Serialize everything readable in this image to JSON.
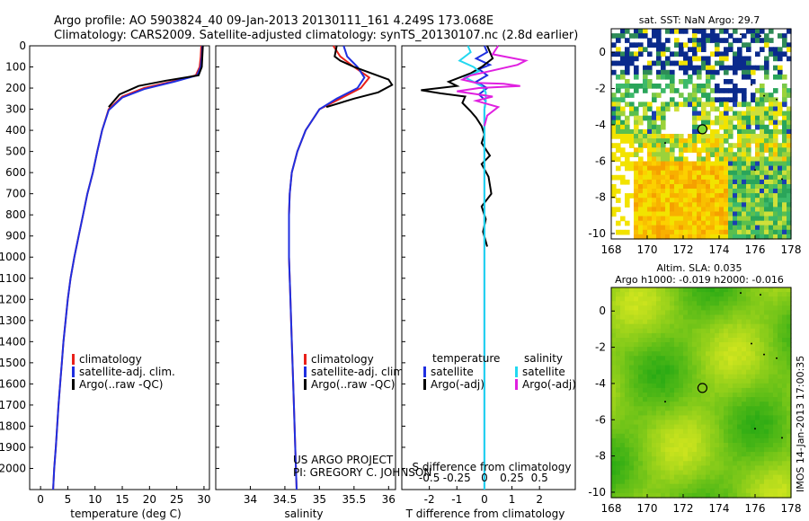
{
  "header": {
    "line1": "Argo profile: AO 5903824_40 09-Jan-2013 20130111_161 4.249S 173.068E",
    "line2": "Climatology: CARS2009. Satellite-adjusted climatology: synTS_20130107.nc (2.8d earlier)"
  },
  "credit": {
    "line1": "US ARGO PROJECT",
    "line2": "PI: GREGORY C. JOHNSON"
  },
  "side_stamp": "IMOS 14-Jan-2013 17:00:35",
  "colors": {
    "climatology": "#e8201a",
    "satellite": "#1f2fe0",
    "argo": "#000000",
    "satellite_diff": "#22d8f0",
    "argo_sal_diff": "#e020e0"
  },
  "chart_data": [
    {
      "type": "line",
      "xlabel": "temperature (deg C)",
      "ylabel": "",
      "xlim": [
        -2,
        31
      ],
      "ylim": [
        2100,
        0
      ],
      "xticks": [
        0,
        5,
        10,
        15,
        20,
        25,
        30
      ],
      "yticks": [
        0,
        100,
        200,
        300,
        400,
        500,
        600,
        700,
        800,
        900,
        1000,
        1100,
        1200,
        1300,
        1400,
        1500,
        1600,
        1700,
        1800,
        1900,
        2000
      ],
      "legend": [
        "climatology",
        "satellite-adj. clim.",
        "Argo(..raw -QC)"
      ],
      "legend_position": "lower-center",
      "series": [
        {
          "name": "climatology",
          "color_key": "climatology",
          "points": [
            [
              29.5,
              0
            ],
            [
              29.4,
              50
            ],
            [
              29.2,
              100
            ],
            [
              28.5,
              140
            ],
            [
              24,
              170
            ],
            [
              19,
              200
            ],
            [
              15,
              240
            ],
            [
              12.5,
              300
            ],
            [
              11.3,
              400
            ],
            [
              10.4,
              500
            ],
            [
              9.6,
              600
            ],
            [
              8.6,
              700
            ],
            [
              7.8,
              800
            ],
            [
              7,
              900
            ],
            [
              6.2,
              1000
            ],
            [
              5.5,
              1100
            ],
            [
              5,
              1200
            ],
            [
              4.6,
              1300
            ],
            [
              4.2,
              1400
            ],
            [
              3.9,
              1500
            ],
            [
              3.6,
              1600
            ],
            [
              3.3,
              1700
            ],
            [
              3.05,
              1800
            ],
            [
              2.8,
              1900
            ],
            [
              2.5,
              2000
            ],
            [
              2.3,
              2100
            ]
          ]
        },
        {
          "name": "satellite-adj. clim.",
          "color_key": "satellite",
          "points": [
            [
              29.7,
              0
            ],
            [
              29.6,
              50
            ],
            [
              29.4,
              100
            ],
            [
              28.7,
              140
            ],
            [
              24.5,
              170
            ],
            [
              19,
              205
            ],
            [
              15,
              245
            ],
            [
              12.5,
              305
            ],
            [
              11.3,
              400
            ],
            [
              10.4,
              500
            ],
            [
              9.6,
              600
            ],
            [
              8.6,
              700
            ],
            [
              7.8,
              800
            ],
            [
              7,
              900
            ],
            [
              6.2,
              1000
            ],
            [
              5.5,
              1100
            ],
            [
              5,
              1200
            ],
            [
              4.6,
              1300
            ],
            [
              4.2,
              1400
            ],
            [
              3.9,
              1500
            ],
            [
              3.6,
              1600
            ],
            [
              3.3,
              1700
            ],
            [
              3.05,
              1800
            ],
            [
              2.8,
              1900
            ],
            [
              2.5,
              2000
            ],
            [
              2.3,
              2100
            ]
          ]
        },
        {
          "name": "Argo(..raw -QC)",
          "color_key": "argo",
          "points": [
            [
              29.8,
              0
            ],
            [
              29.7,
              50
            ],
            [
              29.6,
              100
            ],
            [
              29,
              140
            ],
            [
              23,
              165
            ],
            [
              18,
              190
            ],
            [
              14.5,
              230
            ],
            [
              12.5,
              290
            ]
          ]
        }
      ]
    },
    {
      "type": "line",
      "xlabel": "salinity",
      "ylabel": "",
      "xlim": [
        33.5,
        36.1
      ],
      "ylim": [
        2100,
        0
      ],
      "xticks": [
        34,
        34.5,
        35,
        35.5,
        36
      ],
      "legend": [
        "climatology",
        "satellite-adj. clim.",
        "Argo(..raw -QC)"
      ],
      "legend_position": "lower-center",
      "series": [
        {
          "name": "climatology",
          "color_key": "climatology",
          "points": [
            [
              35.2,
              0
            ],
            [
              35.3,
              50
            ],
            [
              35.5,
              100
            ],
            [
              35.72,
              150
            ],
            [
              35.6,
              200
            ],
            [
              35.3,
              250
            ],
            [
              35.0,
              300
            ],
            [
              34.8,
              400
            ],
            [
              34.68,
              500
            ],
            [
              34.6,
              600
            ],
            [
              34.57,
              700
            ],
            [
              34.56,
              800
            ],
            [
              34.56,
              1000
            ],
            [
              34.58,
              1200
            ],
            [
              34.6,
              1400
            ],
            [
              34.62,
              1600
            ],
            [
              34.64,
              1800
            ],
            [
              34.66,
              2000
            ],
            [
              34.67,
              2100
            ]
          ]
        },
        {
          "name": "satellite-adj. clim.",
          "color_key": "satellite",
          "points": [
            [
              35.35,
              0
            ],
            [
              35.4,
              50
            ],
            [
              35.55,
              100
            ],
            [
              35.65,
              150
            ],
            [
              35.55,
              200
            ],
            [
              35.25,
              250
            ],
            [
              35.0,
              300
            ],
            [
              34.8,
              400
            ],
            [
              34.68,
              500
            ],
            [
              34.6,
              600
            ],
            [
              34.57,
              700
            ],
            [
              34.56,
              800
            ],
            [
              34.56,
              1000
            ],
            [
              34.58,
              1200
            ],
            [
              34.6,
              1400
            ],
            [
              34.62,
              1600
            ],
            [
              34.64,
              1800
            ],
            [
              34.66,
              2000
            ],
            [
              34.67,
              2100
            ]
          ]
        },
        {
          "name": "Argo(..raw -QC)",
          "color_key": "argo",
          "points": [
            [
              35.25,
              0
            ],
            [
              35.22,
              50
            ],
            [
              35.3,
              70
            ],
            [
              35.5,
              100
            ],
            [
              35.75,
              130
            ],
            [
              36.0,
              160
            ],
            [
              36.05,
              185
            ],
            [
              35.85,
              220
            ],
            [
              35.5,
              250
            ],
            [
              35.1,
              290
            ]
          ]
        }
      ]
    },
    {
      "type": "line",
      "xlabel": "T difference from climatology",
      "xlabel_top": "S difference from climatology",
      "xlim": [
        -3,
        3.3
      ],
      "ylim": [
        2100,
        0
      ],
      "xticks": [
        -2,
        -1,
        0,
        1,
        2
      ],
      "xticks_salinity": [
        -0.5,
        -0.25,
        0,
        0.25,
        0.5
      ],
      "legend_temperature_title": "temperature",
      "legend_salinity_title": "salinity",
      "legend_temperature": [
        "satellite",
        "Argo(-adj)"
      ],
      "legend_salinity": [
        "satellite",
        "Argo(-adj)"
      ],
      "legend_position": "lower-center",
      "series": [
        {
          "name": "temperature satellite",
          "color_key": "satellite",
          "points": [
            [
              0,
              0
            ],
            [
              0.1,
              30
            ],
            [
              -0.3,
              60
            ],
            [
              0.2,
              90
            ],
            [
              -0.2,
              110
            ],
            [
              0.1,
              140
            ],
            [
              -0.3,
              170
            ],
            [
              0.1,
              200
            ],
            [
              -0.2,
              230
            ],
            [
              0.05,
              260
            ],
            [
              0,
              300
            ],
            [
              0,
              2000
            ],
            [
              0,
              2100
            ]
          ]
        },
        {
          "name": "temperature Argo(-adj)",
          "color_key": "argo",
          "points": [
            [
              0.1,
              0
            ],
            [
              0.3,
              60
            ],
            [
              -0.1,
              100
            ],
            [
              -0.5,
              130
            ],
            [
              -1.3,
              170
            ],
            [
              -1.0,
              190
            ],
            [
              -2.3,
              210
            ],
            [
              -1.6,
              225
            ],
            [
              -0.7,
              240
            ],
            [
              -0.8,
              270
            ],
            [
              -0.5,
              310
            ],
            [
              -0.3,
              340
            ],
            [
              -0.1,
              380
            ],
            [
              0,
              420
            ],
            [
              -0.1,
              460
            ],
            [
              0.2,
              520
            ],
            [
              -0.1,
              560
            ],
            [
              0.15,
              620
            ],
            [
              0.25,
              700
            ],
            [
              -0.1,
              760
            ],
            [
              0.05,
              820
            ],
            [
              -0.05,
              880
            ],
            [
              0.1,
              950
            ]
          ]
        },
        {
          "name": "salinity satellite",
          "color_key": "satellite_diff",
          "points": [
            [
              -0.6,
              0
            ],
            [
              -0.5,
              30
            ],
            [
              -0.9,
              70
            ],
            [
              -0.4,
              100
            ],
            [
              -0.2,
              120
            ],
            [
              -0.7,
              150
            ],
            [
              -0.1,
              190
            ],
            [
              0.05,
              220
            ],
            [
              0.05,
              250
            ],
            [
              0,
              300
            ],
            [
              0,
              2000
            ],
            [
              0,
              2100
            ]
          ]
        },
        {
          "name": "salinity Argo(-adj)",
          "color_key": "argo_sal_diff",
          "points": [
            [
              0.5,
              0
            ],
            [
              0.3,
              40
            ],
            [
              1.5,
              70
            ],
            [
              1.2,
              90
            ],
            [
              0.2,
              120
            ],
            [
              -0.5,
              140
            ],
            [
              -0.8,
              160
            ],
            [
              -0.3,
              175
            ],
            [
              0.7,
              180
            ],
            [
              1.3,
              190
            ],
            [
              -0.2,
              200
            ],
            [
              -1.0,
              215
            ],
            [
              0.3,
              240
            ],
            [
              -0.3,
              260
            ],
            [
              0.5,
              290
            ],
            [
              0.1,
              330
            ],
            [
              0,
              380
            ]
          ]
        }
      ]
    },
    {
      "type": "heatmap",
      "title": "sat. SST: NaN Argo: 29.7",
      "xlim": [
        168,
        178
      ],
      "ylim": [
        -10.3,
        1.3
      ],
      "xticks": [
        168,
        170,
        172,
        174,
        176,
        178
      ],
      "yticks": [
        0,
        -2,
        -4,
        -6,
        -8,
        -10
      ],
      "argo_position": [
        173.068,
        -4.249
      ],
      "argo_marker_color": "#7ddd3a"
    },
    {
      "type": "heatmap",
      "title": "Altim. SLA: 0.035",
      "subtitle": "Argo h1000: -0.019 h2000: -0.016",
      "xlim": [
        168,
        178
      ],
      "ylim": [
        -10.3,
        1.3
      ],
      "xticks": [
        168,
        170,
        172,
        174,
        176,
        178
      ],
      "yticks": [
        0,
        -2,
        -4,
        -6,
        -8,
        -10
      ],
      "argo_position": [
        173.068,
        -4.249
      ]
    }
  ]
}
